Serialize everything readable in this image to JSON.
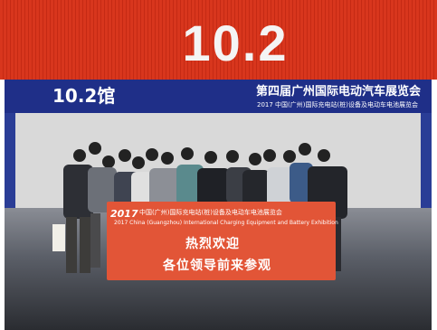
{
  "hall_number": "10.2",
  "hall_sign": {
    "hall_label": "10.2馆",
    "title": "第四届广州国际电动汽车展览会",
    "subtitle": "2017 中国(广州)国际充电站(桩)设备及电动车电池展览会"
  },
  "banner": {
    "year": "2017",
    "title_cn": "中国(广州)国际充电站(桩)设备及电动车电池展览会",
    "title_en": "2017 China (Guangzhou) International Charging Equipment and Battery Exhibition",
    "line1": "热烈欢迎",
    "line2": "各位领导前来参观"
  }
}
